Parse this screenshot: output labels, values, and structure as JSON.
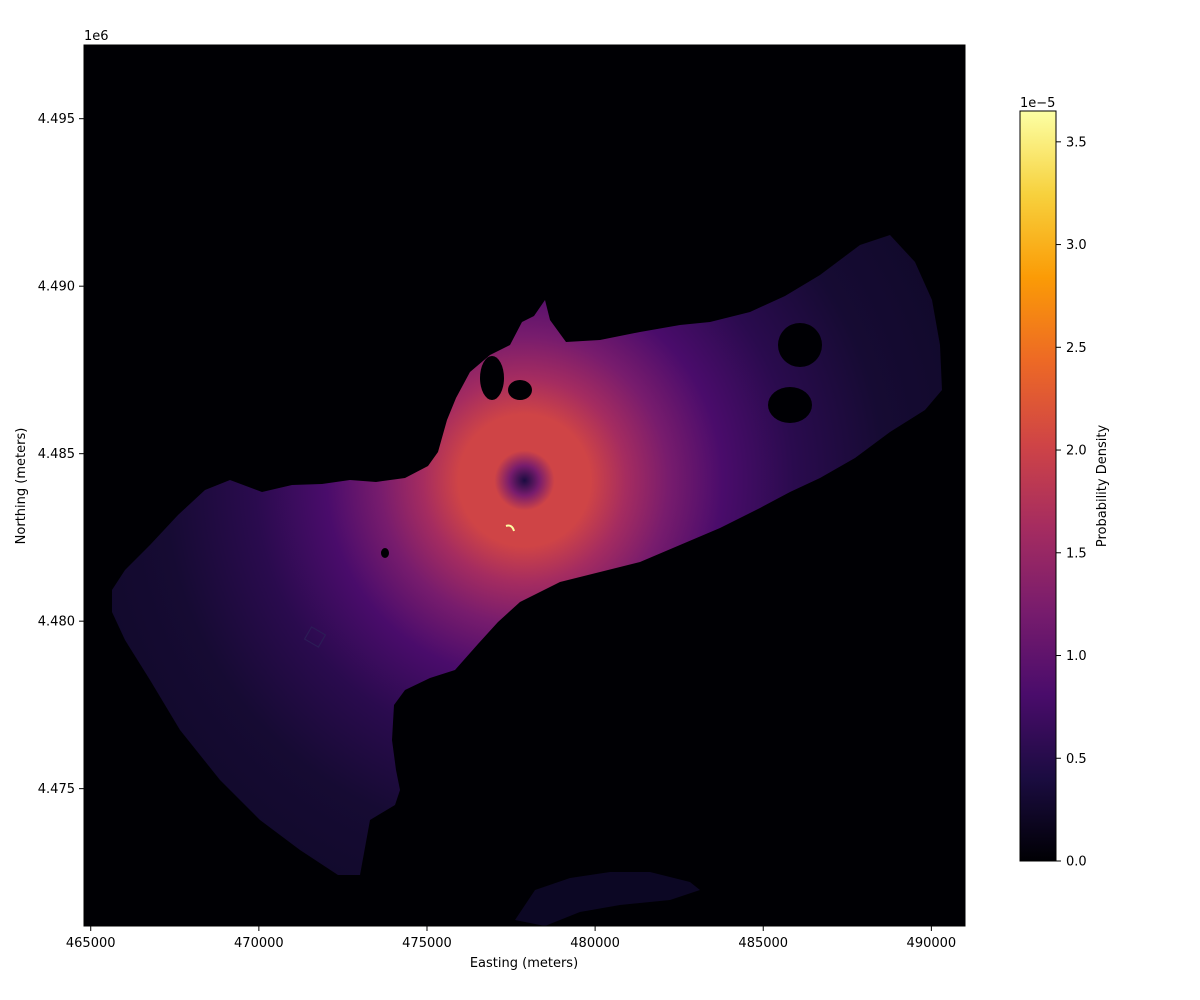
{
  "chart_data": {
    "type": "heatmap",
    "title": "",
    "xlabel": "Easting (meters)",
    "ylabel": "Northing (meters)",
    "y_offset_label": "1e6",
    "xlim": [
      464800,
      491000
    ],
    "ylim": [
      4470900,
      4497200
    ],
    "x_ticks": [
      {
        "value": 465000,
        "label": "465000"
      },
      {
        "value": 470000,
        "label": "470000"
      },
      {
        "value": 475000,
        "label": "475000"
      },
      {
        "value": 480000,
        "label": "480000"
      },
      {
        "value": 485000,
        "label": "485000"
      },
      {
        "value": 490000,
        "label": "490000"
      }
    ],
    "y_ticks": [
      {
        "value": 4475000,
        "label": "4.475"
      },
      {
        "value": 4480000,
        "label": "4.480"
      },
      {
        "value": 4485000,
        "label": "4.485"
      },
      {
        "value": 4490000,
        "label": "4.490"
      },
      {
        "value": 4495000,
        "label": "4.495"
      }
    ],
    "colormap": "inferno",
    "colormap_stops": [
      "#000004",
      "#1b0c41",
      "#4a0c6b",
      "#781c6d",
      "#a52c60",
      "#cf4446",
      "#ed6925",
      "#fb9b06",
      "#f7d13d",
      "#fcffa4"
    ],
    "background_color": "#000004",
    "peak_center": {
      "x": 477900,
      "y": 4484200
    },
    "peak_value": 2.2e-05,
    "colorbar": {
      "label": "Probability Density",
      "offset_label": "1e−5",
      "vmin": 0.0,
      "vmax": 3.65,
      "ticks": [
        {
          "value": 0.0,
          "label": "0.0"
        },
        {
          "value": 0.5,
          "label": "0.5"
        },
        {
          "value": 1.0,
          "label": "1.0"
        },
        {
          "value": 1.5,
          "label": "1.5"
        },
        {
          "value": 2.0,
          "label": "2.0"
        },
        {
          "value": 2.5,
          "label": "2.5"
        },
        {
          "value": 3.0,
          "label": "3.0"
        },
        {
          "value": 3.5,
          "label": "3.5"
        }
      ]
    }
  }
}
